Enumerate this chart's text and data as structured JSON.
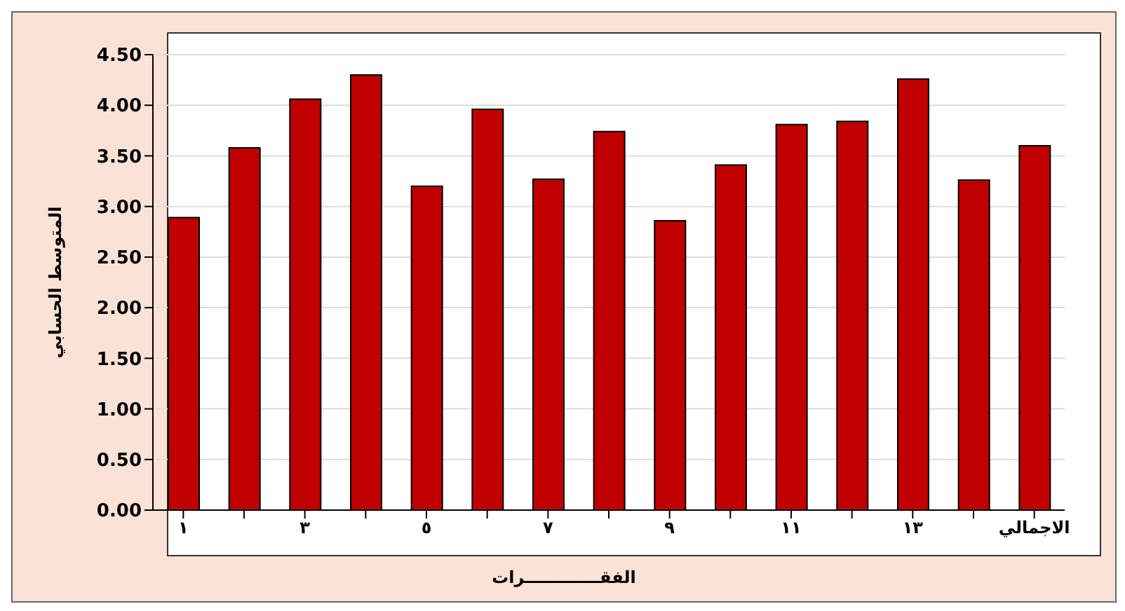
{
  "chart_data": {
    "type": "bar",
    "xlabel": "الفقـــــــــــــرات",
    "ylabel": "المتوسط الحسابي",
    "categories": [
      "١",
      null,
      "٣",
      null,
      "٥",
      null,
      "٧",
      null,
      "٩",
      null,
      "١١",
      null,
      "١٣",
      null,
      "الاجمالي"
    ],
    "values": [
      2.89,
      3.58,
      4.06,
      4.3,
      3.2,
      3.96,
      3.27,
      3.74,
      2.86,
      3.41,
      3.81,
      3.84,
      4.26,
      3.26,
      3.6
    ],
    "color": "#c00000",
    "ylim": [
      0,
      4.5
    ],
    "yticks": [
      {
        "value": 0,
        "label": "0.00"
      },
      {
        "value": 0.5,
        "label": "0.50"
      },
      {
        "value": 1,
        "label": "1.00"
      },
      {
        "value": 1.5,
        "label": "1.50"
      },
      {
        "value": 2,
        "label": "2.00"
      },
      {
        "value": 2.5,
        "label": "2.50"
      },
      {
        "value": 3,
        "label": "3.00"
      },
      {
        "value": 3.5,
        "label": "3.50"
      },
      {
        "value": 4,
        "label": "4.00"
      },
      {
        "value": 4.5,
        "label": "4.50"
      }
    ],
    "grid": "y"
  }
}
